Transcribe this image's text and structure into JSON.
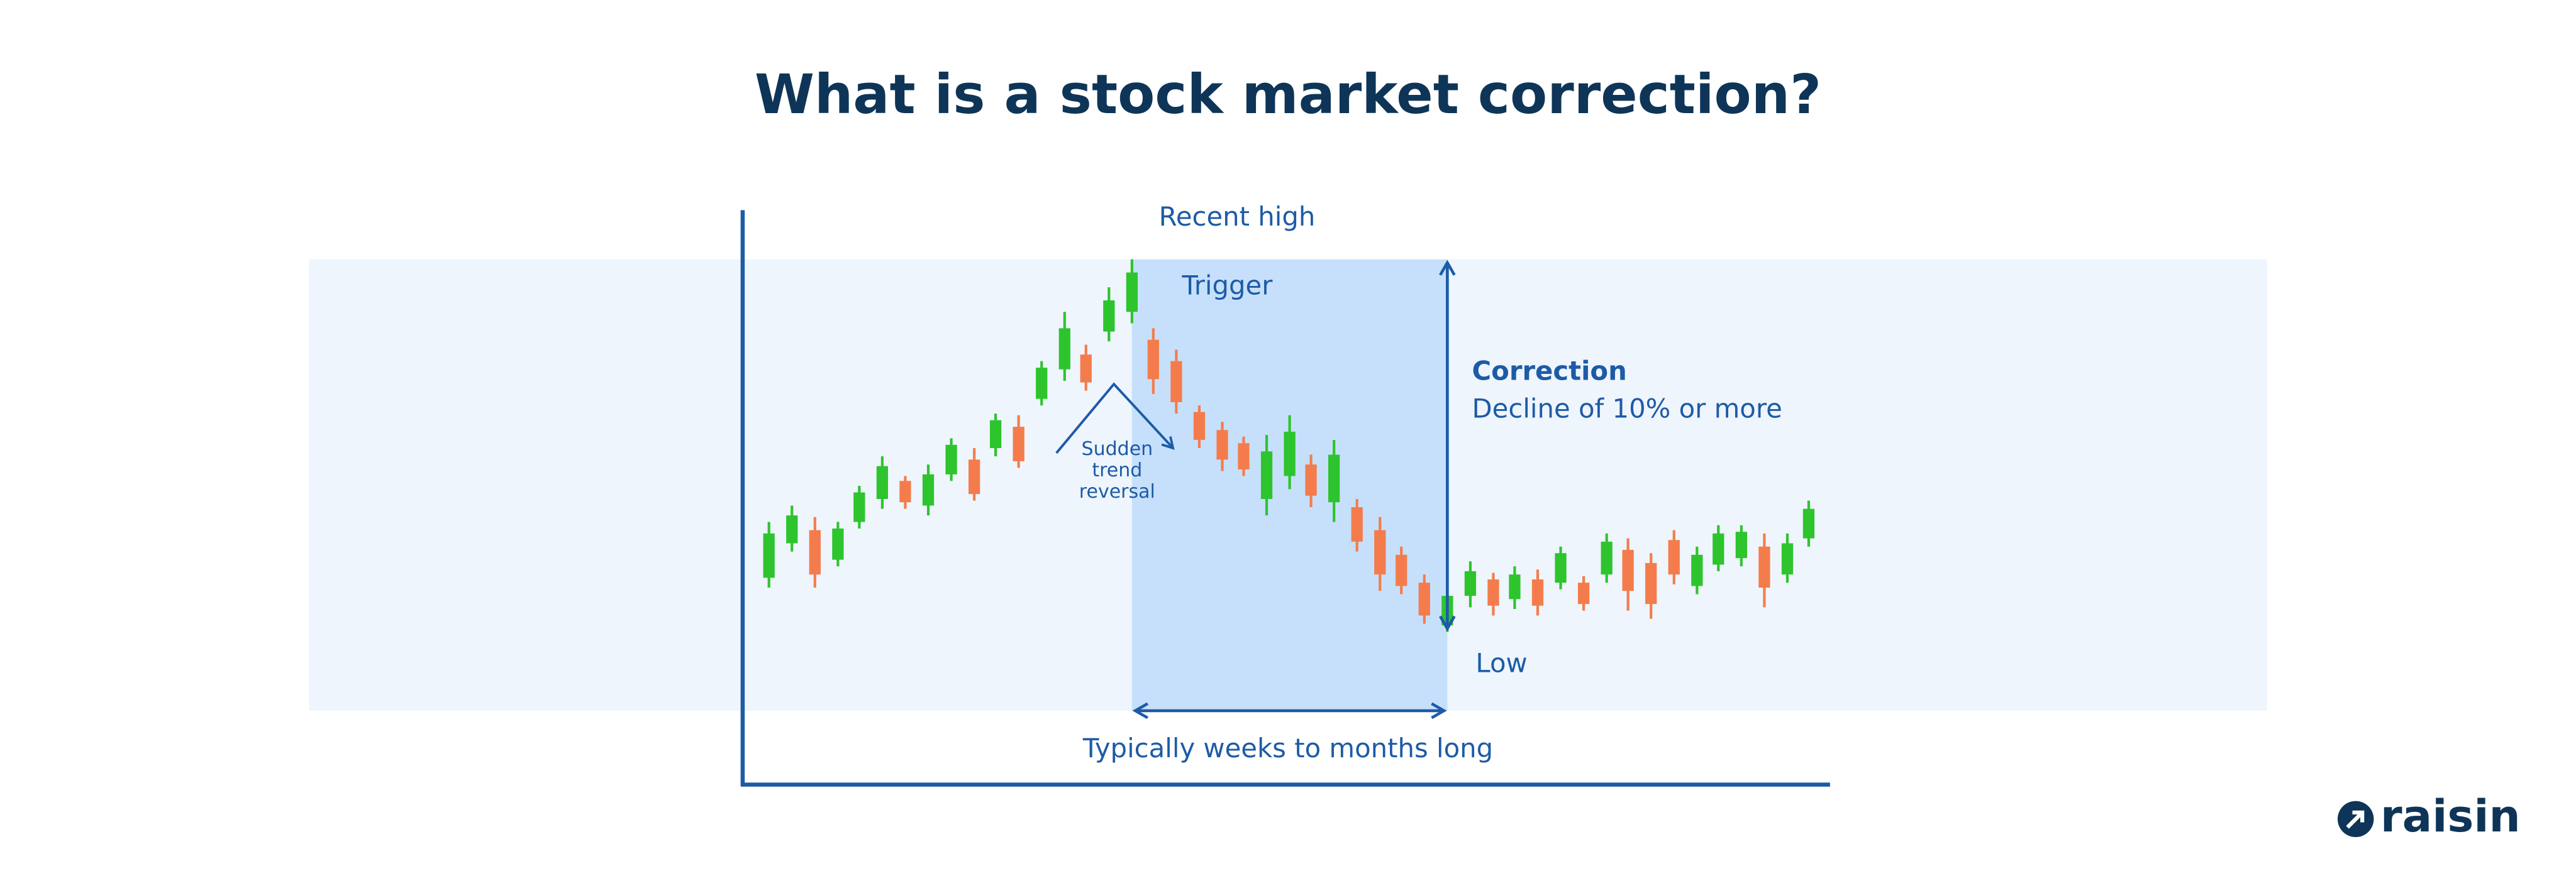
{
  "title": "What is a stock market correction?",
  "labels": {
    "recent_high": "Recent high",
    "trigger": "Trigger",
    "correction": "Correction",
    "decline": "Decline of 10% or more",
    "reversal": [
      "Sudden",
      "trend",
      "reversal"
    ],
    "low": "Low",
    "duration": "Typically weeks to months long"
  },
  "logo": "raisin"
}
